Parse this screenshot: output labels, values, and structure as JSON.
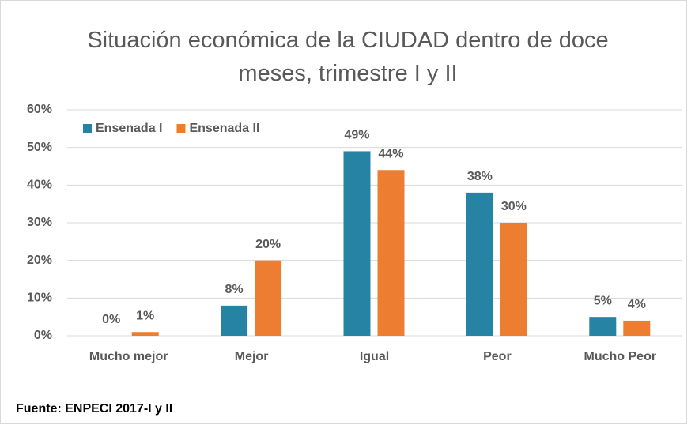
{
  "chart_data": {
    "type": "bar",
    "title": "Situación económica de la CIUDAD dentro de doce meses, trimestre I y II",
    "categories": [
      "Mucho mejor",
      "Mejor",
      "Igual",
      "Peor",
      "Mucho Peor"
    ],
    "series": [
      {
        "name": "Ensenada I",
        "color": "#2683a3",
        "values": [
          0,
          8,
          49,
          38,
          5
        ],
        "value_labels": [
          "0%",
          "8%",
          "49%",
          "38%",
          "5%"
        ]
      },
      {
        "name": "Ensenada II",
        "color": "#ed7d31",
        "values": [
          1,
          20,
          44,
          30,
          4
        ],
        "value_labels": [
          "1%",
          "20%",
          "44%",
          "30%",
          "4%"
        ]
      }
    ],
    "ylim": [
      0,
      60
    ],
    "yticks": [
      {
        "value": 0,
        "label": "0%"
      },
      {
        "value": 10,
        "label": "10%"
      },
      {
        "value": 20,
        "label": "20%"
      },
      {
        "value": 30,
        "label": "30%"
      },
      {
        "value": 40,
        "label": "40%"
      },
      {
        "value": 50,
        "label": "50%"
      },
      {
        "value": 60,
        "label": "60%"
      }
    ],
    "grid": true,
    "legend": "top-left",
    "source": "Fuente: ENPECI 2017-I y II"
  }
}
